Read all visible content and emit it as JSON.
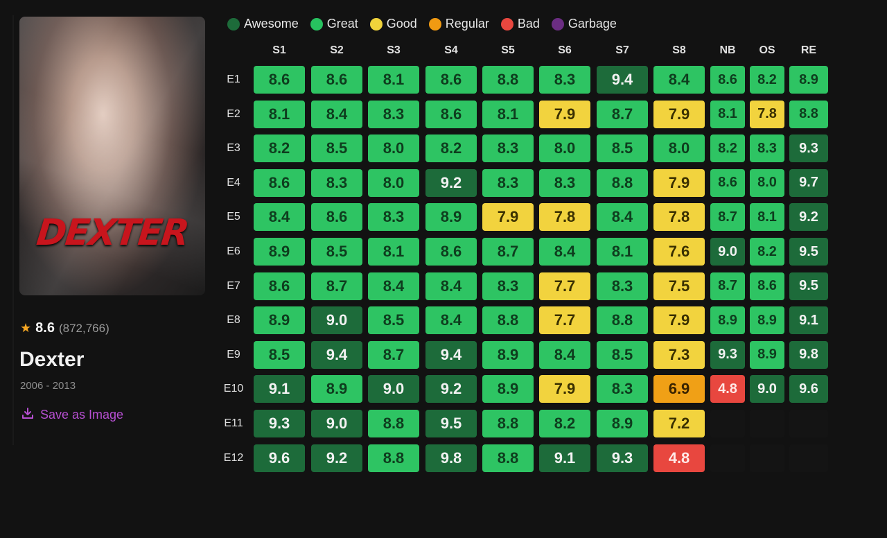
{
  "show": {
    "title": "Dexter",
    "years": "2006 - 2013",
    "rating": "8.6",
    "votes": "(872,766)",
    "poster_logo": "DEXTER",
    "save_label": "Save as Image"
  },
  "legend": [
    {
      "label": "Awesome",
      "color": "#1d6b3a"
    },
    {
      "label": "Great",
      "color": "#27c15f"
    },
    {
      "label": "Good",
      "color": "#f0d33b"
    },
    {
      "label": "Regular",
      "color": "#f09a12"
    },
    {
      "label": "Bad",
      "color": "#e8473f"
    },
    {
      "label": "Garbage",
      "color": "#6b2d82"
    }
  ],
  "seasons": [
    "S1",
    "S2",
    "S3",
    "S4",
    "S5",
    "S6",
    "S7",
    "S8",
    "NB",
    "OS",
    "RE"
  ],
  "episodes": [
    "E1",
    "E2",
    "E3",
    "E4",
    "E5",
    "E6",
    "E7",
    "E8",
    "E9",
    "E10",
    "E11",
    "E12"
  ],
  "ratings": [
    [
      "8.6",
      "8.6",
      "8.1",
      "8.6",
      "8.8",
      "8.3",
      "9.4",
      "8.4",
      "8.6",
      "8.2",
      "8.9"
    ],
    [
      "8.1",
      "8.4",
      "8.3",
      "8.6",
      "8.1",
      "7.9",
      "8.7",
      "7.9",
      "8.1",
      "7.8",
      "8.8"
    ],
    [
      "8.2",
      "8.5",
      "8.0",
      "8.2",
      "8.3",
      "8.0",
      "8.5",
      "8.0",
      "8.2",
      "8.3",
      "9.3"
    ],
    [
      "8.6",
      "8.3",
      "8.0",
      "9.2",
      "8.3",
      "8.3",
      "8.8",
      "7.9",
      "8.6",
      "8.0",
      "9.7"
    ],
    [
      "8.4",
      "8.6",
      "8.3",
      "8.9",
      "7.9",
      "7.8",
      "8.4",
      "7.8",
      "8.7",
      "8.1",
      "9.2"
    ],
    [
      "8.9",
      "8.5",
      "8.1",
      "8.6",
      "8.7",
      "8.4",
      "8.1",
      "7.6",
      "9.0",
      "8.2",
      "9.5"
    ],
    [
      "8.6",
      "8.7",
      "8.4",
      "8.4",
      "8.3",
      "7.7",
      "8.3",
      "7.5",
      "8.7",
      "8.6",
      "9.5"
    ],
    [
      "8.9",
      "9.0",
      "8.5",
      "8.4",
      "8.8",
      "7.7",
      "8.8",
      "7.9",
      "8.9",
      "8.9",
      "9.1"
    ],
    [
      "8.5",
      "9.4",
      "8.7",
      "9.4",
      "8.9",
      "8.4",
      "8.5",
      "7.3",
      "9.3",
      "8.9",
      "9.8"
    ],
    [
      "9.1",
      "8.9",
      "9.0",
      "9.2",
      "8.9",
      "7.9",
      "8.3",
      "6.9",
      "4.8",
      "9.0",
      "9.6"
    ],
    [
      "9.3",
      "9.0",
      "8.8",
      "9.5",
      "8.8",
      "8.2",
      "8.9",
      "7.2",
      "",
      "",
      ""
    ],
    [
      "9.6",
      "9.2",
      "8.8",
      "9.8",
      "8.8",
      "9.1",
      "9.3",
      "4.8",
      "",
      "",
      ""
    ]
  ]
}
